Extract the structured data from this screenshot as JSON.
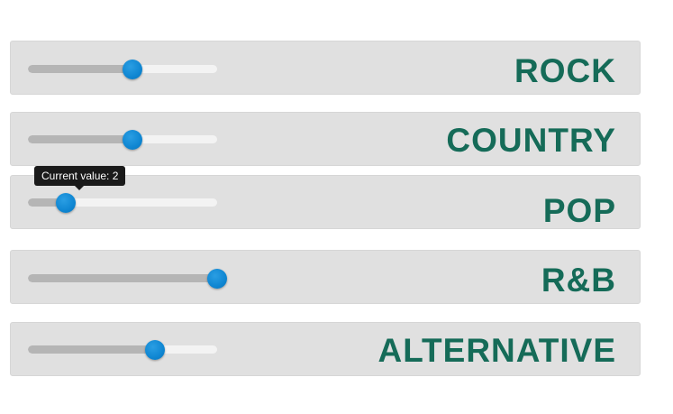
{
  "genres": [
    {
      "label": "ROCK",
      "value": 5.5
    },
    {
      "label": "COUNTRY",
      "value": 5.5
    },
    {
      "label": "POP",
      "value": 2
    },
    {
      "label": "R&B",
      "value": 10
    },
    {
      "label": "ALTERNATIVE",
      "value": 6.7
    }
  ],
  "slider": {
    "min": 0,
    "max": 10
  },
  "tooltip": {
    "text": "Current value: 2"
  },
  "colors": {
    "label": "#156b58",
    "row_background": "#e0e0e0",
    "handle": "#0f86d2",
    "track_filled": "#b5b5b5",
    "track_empty": "#f3f3f3",
    "tooltip_background": "#1a1a1a"
  }
}
